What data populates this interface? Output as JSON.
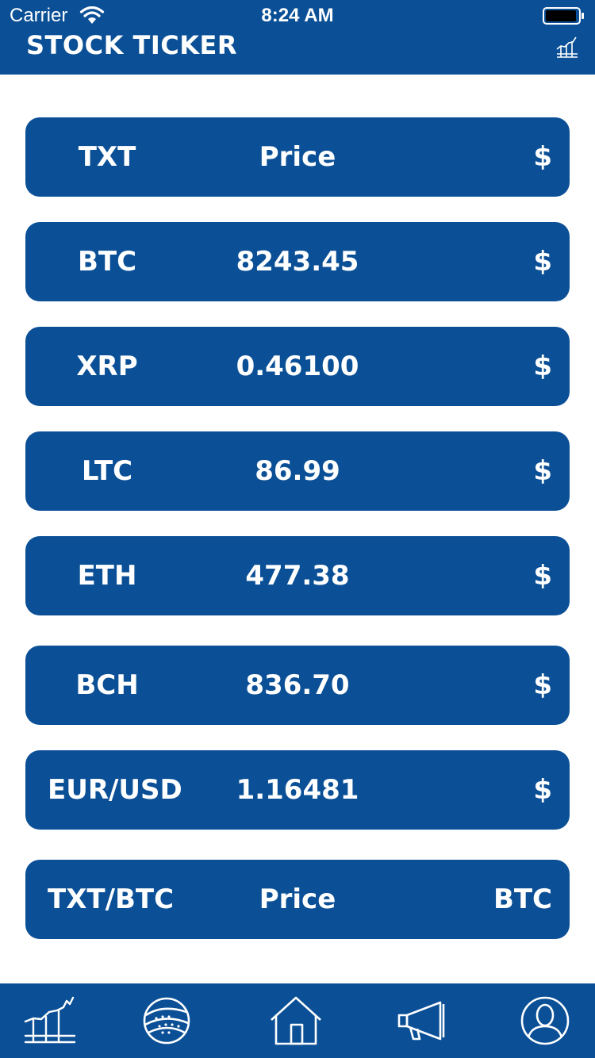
{
  "status_bar": {
    "carrier": "Carrier",
    "time": "8:24 AM"
  },
  "header": {
    "title": "STOCK TICKER",
    "chart_icon": "line-chart-icon"
  },
  "rows": [
    {
      "symbol": "TXT",
      "price": "Price",
      "unit": "$"
    },
    {
      "symbol": "BTC",
      "price": "8243.45",
      "unit": "$"
    },
    {
      "symbol": "XRP",
      "price": "0.46100",
      "unit": "$"
    },
    {
      "symbol": "LTC",
      "price": "86.99",
      "unit": "$"
    },
    {
      "symbol": "ETH",
      "price": "477.38",
      "unit": "$"
    },
    {
      "symbol": "BCH",
      "price": "836.70",
      "unit": "$"
    },
    {
      "symbol": "EUR/USD",
      "price": "1.16481",
      "unit": "$"
    },
    {
      "symbol": "TXT/BTC",
      "price": "Price",
      "unit": "BTC"
    }
  ],
  "tab_bar": {
    "tabs": [
      {
        "icon": "line-chart-icon"
      },
      {
        "icon": "globe-icon"
      },
      {
        "icon": "home-icon"
      },
      {
        "icon": "megaphone-icon"
      },
      {
        "icon": "user-icon"
      }
    ]
  },
  "colors": {
    "brand": "#0B5096",
    "text": "#FFFFFF",
    "background": "#FFFFFF"
  }
}
